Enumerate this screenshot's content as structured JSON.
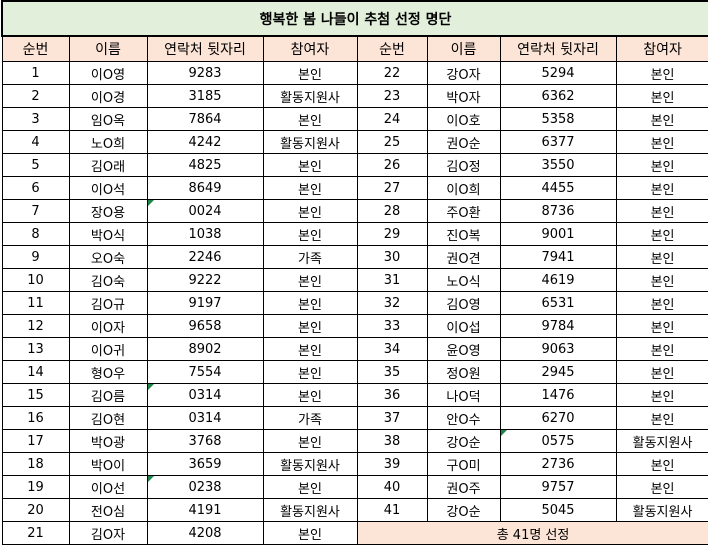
{
  "title": "행복한 봄 나들이 추첨 선정 명단",
  "headers": [
    "순번",
    "이름",
    "연락처 뒷자리",
    "참여자",
    "순번",
    "이름",
    "연락처 뒷자리",
    "참여자"
  ],
  "colors": {
    "title_bg": "#e2efda",
    "header_bg": "#fce4d6",
    "total_bg": "#fce4d6",
    "marker": "#1e8449"
  },
  "left_rows": [
    {
      "no": "1",
      "name": "이O영",
      "phone": "9283",
      "type": "본인"
    },
    {
      "no": "2",
      "name": "이O경",
      "phone": "3185",
      "type": "활동지원사"
    },
    {
      "no": "3",
      "name": "임O옥",
      "phone": "7864",
      "type": "본인"
    },
    {
      "no": "4",
      "name": "노O희",
      "phone": "4242",
      "type": "활동지원사"
    },
    {
      "no": "5",
      "name": "김O래",
      "phone": "4825",
      "type": "본인"
    },
    {
      "no": "6",
      "name": "이O석",
      "phone": "8649",
      "type": "본인"
    },
    {
      "no": "7",
      "name": "장O용",
      "phone": "0024",
      "type": "본인"
    },
    {
      "no": "8",
      "name": "박O식",
      "phone": "1038",
      "type": "본인"
    },
    {
      "no": "9",
      "name": "오O숙",
      "phone": "2246",
      "type": "가족"
    },
    {
      "no": "10",
      "name": "김O숙",
      "phone": "9222",
      "type": "본인"
    },
    {
      "no": "11",
      "name": "김O규",
      "phone": "9197",
      "type": "본인"
    },
    {
      "no": "12",
      "name": "이O자",
      "phone": "9658",
      "type": "본인"
    },
    {
      "no": "13",
      "name": "이O귀",
      "phone": "8902",
      "type": "본인"
    },
    {
      "no": "14",
      "name": "형O우",
      "phone": "7554",
      "type": "본인"
    },
    {
      "no": "15",
      "name": "김O름",
      "phone": "0314",
      "type": "본인"
    },
    {
      "no": "16",
      "name": "김O현",
      "phone": "0314",
      "type": "가족"
    },
    {
      "no": "17",
      "name": "박O광",
      "phone": "3768",
      "type": "본인"
    },
    {
      "no": "18",
      "name": "박O이",
      "phone": "3659",
      "type": "활동지원사"
    },
    {
      "no": "19",
      "name": "이O선",
      "phone": "0238",
      "type": "본인"
    },
    {
      "no": "20",
      "name": "전O심",
      "phone": "4191",
      "type": "활동지원사"
    },
    {
      "no": "21",
      "name": "김O자",
      "phone": "4208",
      "type": "본인"
    }
  ],
  "right_rows": [
    {
      "no": "22",
      "name": "강O자",
      "phone": "5294",
      "type": "본인"
    },
    {
      "no": "23",
      "name": "박O자",
      "phone": "6362",
      "type": "본인"
    },
    {
      "no": "24",
      "name": "이O호",
      "phone": "5358",
      "type": "본인"
    },
    {
      "no": "25",
      "name": "권O순",
      "phone": "6377",
      "type": "본인"
    },
    {
      "no": "26",
      "name": "김O정",
      "phone": "3550",
      "type": "본인"
    },
    {
      "no": "27",
      "name": "이O희",
      "phone": "4455",
      "type": "본인"
    },
    {
      "no": "28",
      "name": "주O환",
      "phone": "8736",
      "type": "본인"
    },
    {
      "no": "29",
      "name": "진O복",
      "phone": "9001",
      "type": "본인"
    },
    {
      "no": "30",
      "name": "권O견",
      "phone": "7941",
      "type": "본인"
    },
    {
      "no": "31",
      "name": "노O식",
      "phone": "4619",
      "type": "본인"
    },
    {
      "no": "32",
      "name": "김O영",
      "phone": "6531",
      "type": "본인"
    },
    {
      "no": "33",
      "name": "이O섭",
      "phone": "9784",
      "type": "본인"
    },
    {
      "no": "34",
      "name": "윤O영",
      "phone": "9063",
      "type": "본인"
    },
    {
      "no": "35",
      "name": "정O원",
      "phone": "2945",
      "type": "본인"
    },
    {
      "no": "36",
      "name": "나O덕",
      "phone": "1476",
      "type": "본인"
    },
    {
      "no": "37",
      "name": "안O수",
      "phone": "6270",
      "type": "본인"
    },
    {
      "no": "38",
      "name": "강O순",
      "phone": "0575",
      "type": "활동지원사"
    },
    {
      "no": "39",
      "name": "구O미",
      "phone": "2736",
      "type": "본인"
    },
    {
      "no": "40",
      "name": "권O주",
      "phone": "9757",
      "type": "본인"
    },
    {
      "no": "41",
      "name": "강O순",
      "phone": "5045",
      "type": "활동지원사"
    }
  ],
  "total_label": "총 41명 선정"
}
